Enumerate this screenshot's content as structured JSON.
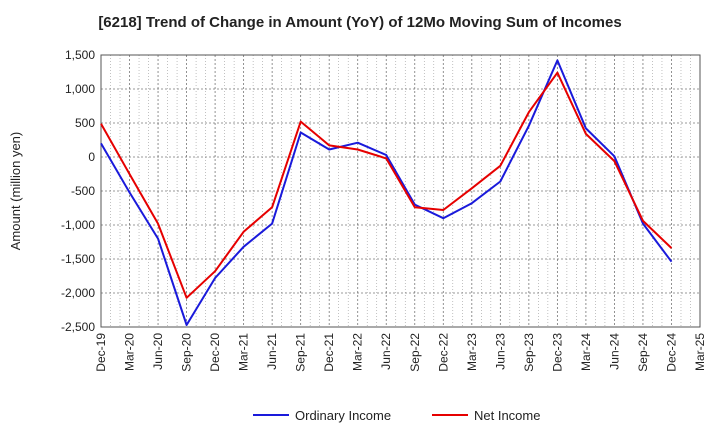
{
  "chart_data": {
    "type": "line",
    "title": "[6218]  Trend of Change in Amount (YoY) of 12Mo Moving Sum of Incomes",
    "ylabel": "Amount (million yen)",
    "xlabel": "",
    "ylim": [
      -2500,
      1500
    ],
    "yticks": [
      1500,
      1000,
      500,
      0,
      -500,
      -1000,
      -1500,
      -2000,
      -2500
    ],
    "ytick_labels": [
      "1,500",
      "1,000",
      "500",
      "0",
      "-500",
      "-1,000",
      "-1,500",
      "-2,000",
      "-2,500"
    ],
    "x": [
      "Dec-19",
      "Mar-20",
      "Jun-20",
      "Sep-20",
      "Dec-20",
      "Mar-21",
      "Jun-21",
      "Sep-21",
      "Dec-21",
      "Mar-22",
      "Jun-22",
      "Sep-22",
      "Dec-22",
      "Mar-23",
      "Jun-23",
      "Sep-23",
      "Dec-23",
      "Mar-24",
      "Jun-24",
      "Sep-24",
      "Dec-24",
      "Mar-25"
    ],
    "grid": true,
    "legend_position": "bottom",
    "series": [
      {
        "name": "Ordinary Income",
        "color": "#1a1adb",
        "values": [
          200,
          -520,
          -1200,
          -2470,
          -1780,
          -1320,
          -980,
          360,
          110,
          210,
          30,
          -700,
          -900,
          -680,
          -360,
          460,
          1420,
          420,
          10,
          -980,
          -1540,
          null
        ]
      },
      {
        "name": "Net Income",
        "color": "#e60000",
        "values": [
          490,
          -250,
          -980,
          -2070,
          -1680,
          -1100,
          -740,
          520,
          170,
          110,
          -20,
          -740,
          -780,
          -460,
          -130,
          660,
          1240,
          340,
          -60,
          -940,
          -1340,
          null
        ]
      }
    ]
  }
}
